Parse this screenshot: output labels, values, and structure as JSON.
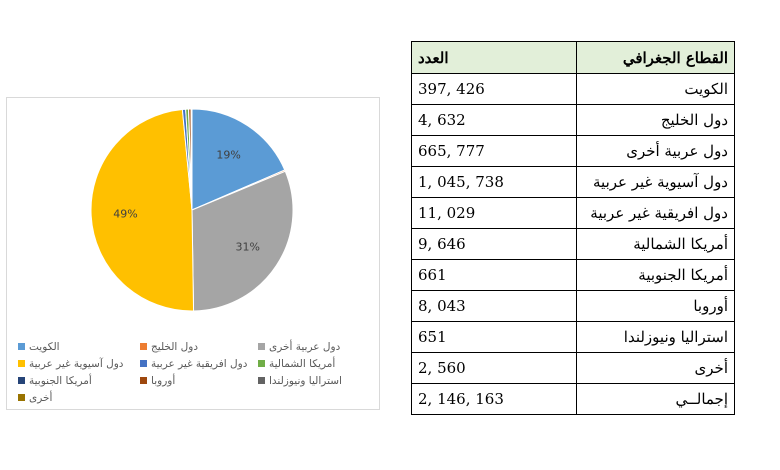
{
  "table": {
    "header_region": "القطاع الجغرافي",
    "header_count": "العدد",
    "rows": [
      {
        "region": "الكويت",
        "count": "397, 426"
      },
      {
        "region": "دول الخليج",
        "count": "4, 632"
      },
      {
        "region": "دول عربية أخرى",
        "count": "665, 777"
      },
      {
        "region": "دول آسيوية غير عربية",
        "count": "1, 045, 738"
      },
      {
        "region": "دول افريقية غير عربية",
        "count": "11, 029"
      },
      {
        "region": "أمريكا الشمالية",
        "count": "9, 646"
      },
      {
        "region": "أمريكا الجنوبية",
        "count": "661"
      },
      {
        "region": "أوروبا",
        "count": "8, 043"
      },
      {
        "region": "استراليا ونيوزلندا",
        "count": "651"
      },
      {
        "region": "أخرى",
        "count": "2, 560"
      },
      {
        "region": "إجمالــي",
        "count": "2, 146, 163"
      }
    ]
  },
  "chart_data": {
    "type": "pie",
    "categories": [
      "الكويت",
      "دول الخليج",
      "دول عربية أخرى",
      "دول آسيوية غير عربية",
      "دول افريقية غير عربية",
      "أمريكا الشمالية",
      "أمريكا الجنوبية",
      "أوروبا",
      "استراليا ونيوزلندا",
      "أخرى"
    ],
    "values": [
      397426,
      4632,
      665777,
      1045738,
      11029,
      9646,
      661,
      8043,
      651,
      2560
    ],
    "data_labels": [
      "19%",
      "",
      "31%",
      "49%",
      "",
      "",
      "",
      "",
      "",
      ""
    ],
    "colors": [
      "#5b9bd5",
      "#ed7d31",
      "#a5a5a5",
      "#ffc000",
      "#4472c4",
      "#70ad47",
      "#264478",
      "#9e480e",
      "#636363",
      "#997300"
    ],
    "legend_position": "bottom"
  }
}
